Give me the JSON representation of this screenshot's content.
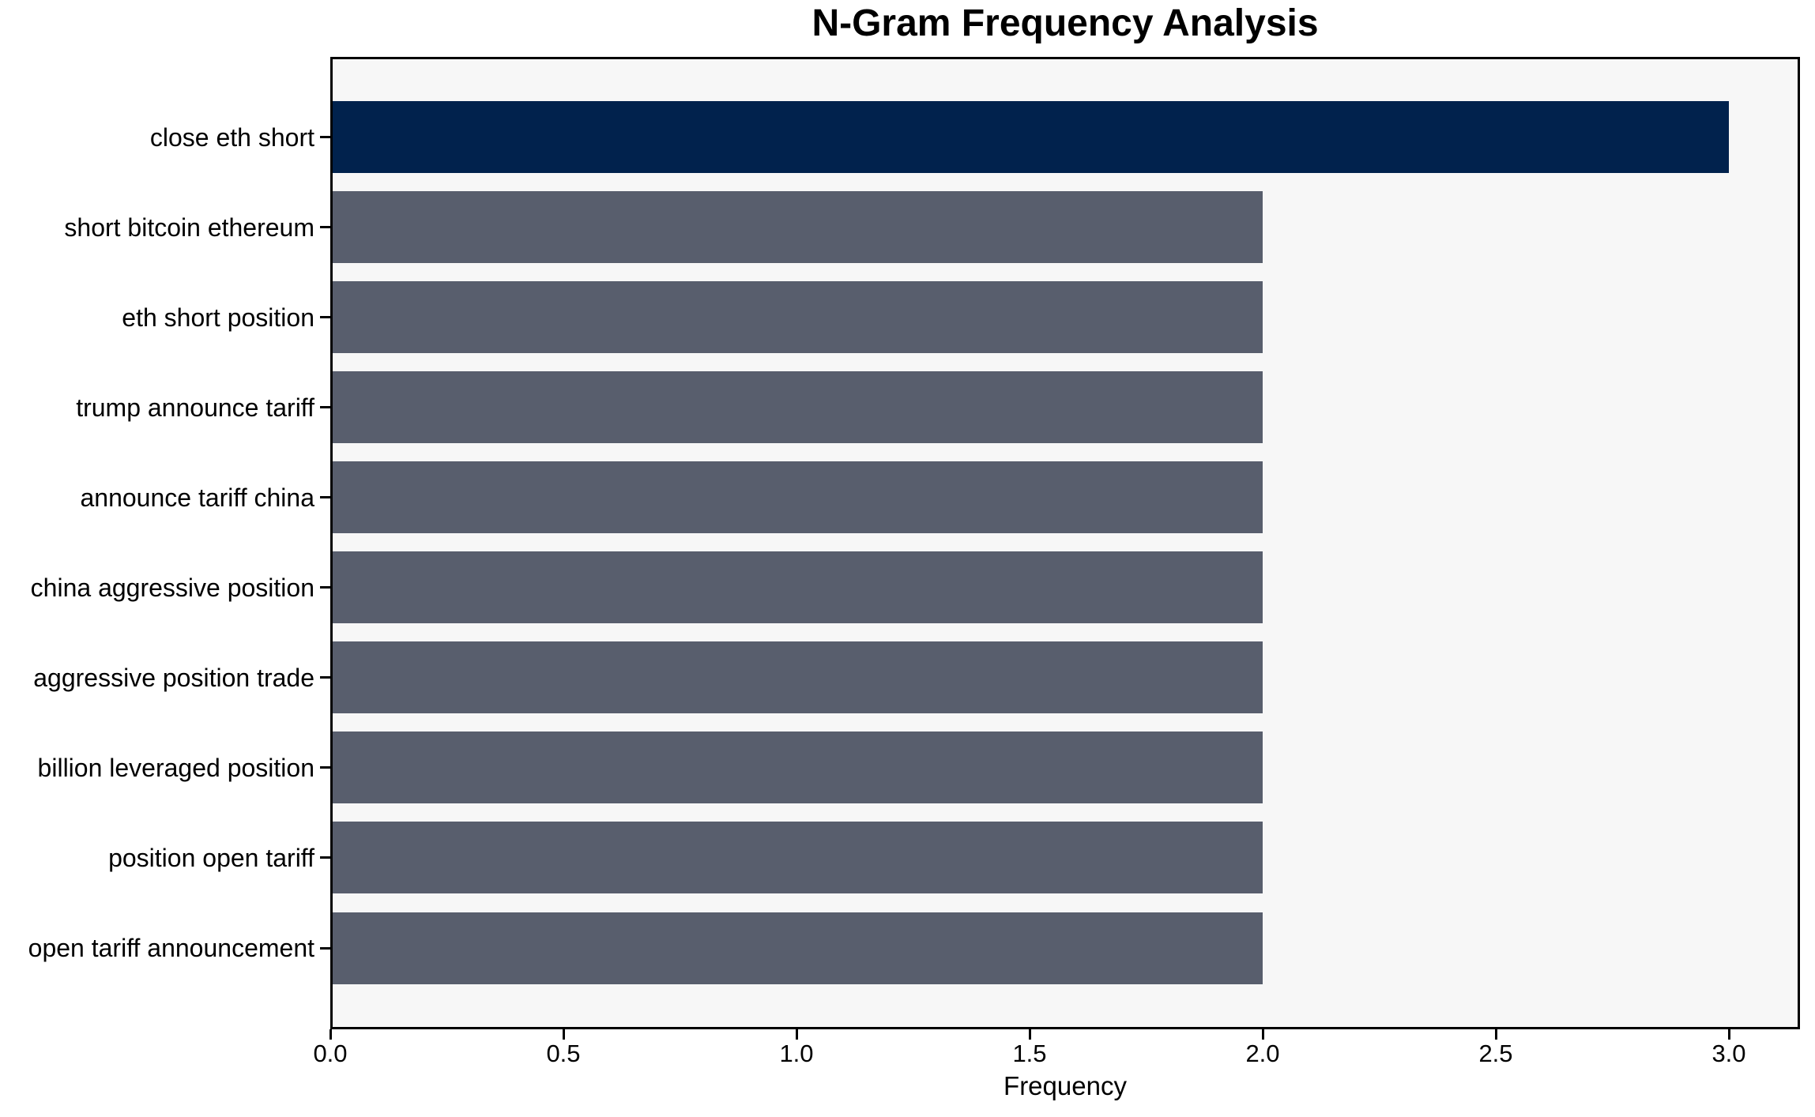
{
  "page": {
    "background": "#ffffff"
  },
  "chart_data": {
    "type": "bar",
    "orientation": "horizontal",
    "title": "N-Gram Frequency Analysis",
    "xlabel": "Frequency",
    "ylabel": "",
    "categories": [
      "close eth short",
      "short bitcoin ethereum",
      "eth short position",
      "trump announce tariff",
      "announce tariff china",
      "china aggressive position",
      "aggressive position trade",
      "billion leveraged position",
      "position open tariff",
      "open tariff announcement"
    ],
    "values": [
      3,
      2,
      2,
      2,
      2,
      2,
      2,
      2,
      2,
      2
    ],
    "highlight_index": 0,
    "xlim": [
      0,
      3.15
    ],
    "xticks": [
      0.0,
      0.5,
      1.0,
      1.5,
      2.0,
      2.5,
      3.0
    ],
    "xtick_labels": [
      "0.0",
      "0.5",
      "1.0",
      "1.5",
      "2.0",
      "2.5",
      "3.0"
    ],
    "grid": false,
    "legend": null,
    "colors": {
      "highlight_bar": "#01224d",
      "default_bar": "#585e6d",
      "plot_background": "#f7f7f7",
      "spine": "#000000",
      "text": "#000000"
    }
  }
}
